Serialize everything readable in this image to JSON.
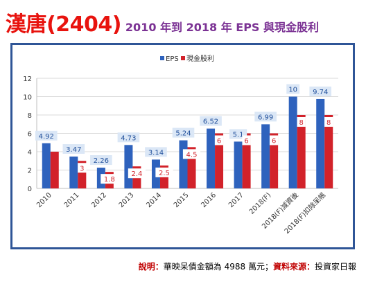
{
  "header": {
    "title_main": "漢唐(2404)",
    "title_sub": "2010 年到 2018 年 EPS 與現金股利"
  },
  "footnote": {
    "label1": "說明：",
    "text1": "華映呆債金額為 4988 萬元；",
    "label2": "資料來源：",
    "text2": "投資家日報"
  },
  "chart_data": {
    "type": "bar",
    "categories": [
      "2010",
      "2011",
      "2012",
      "2013",
      "2014",
      "2015",
      "2016",
      "2017",
      "2018(F)",
      "2018(F)減資後",
      "2018(F)扣除呆帳"
    ],
    "series": [
      {
        "name": "EPS",
        "color": "#2e62bd",
        "values": [
          4.92,
          3.47,
          2.26,
          4.73,
          3.14,
          5.24,
          6.52,
          5.1,
          6.99,
          10,
          9.74
        ],
        "labels": [
          "4.92",
          "3.47",
          "2.26",
          "4.73",
          "3.14",
          "5.24",
          "6.52",
          "5.1",
          "6.99",
          "10",
          "9.74"
        ]
      },
      {
        "name": "現金股利",
        "color": "#d2222a",
        "values": [
          4,
          3,
          1.8,
          2.4,
          2.5,
          4.5,
          6,
          6,
          6,
          8,
          8
        ],
        "labels": [
          "",
          "3",
          "1.8",
          "2.4",
          "2.5",
          "4.5",
          "6",
          "6",
          "6",
          "8",
          "8"
        ]
      }
    ],
    "ylim": [
      0,
      12
    ],
    "yticks": [
      0,
      2,
      4,
      6,
      8,
      10,
      12
    ],
    "grid": true,
    "legend": "top-center"
  }
}
